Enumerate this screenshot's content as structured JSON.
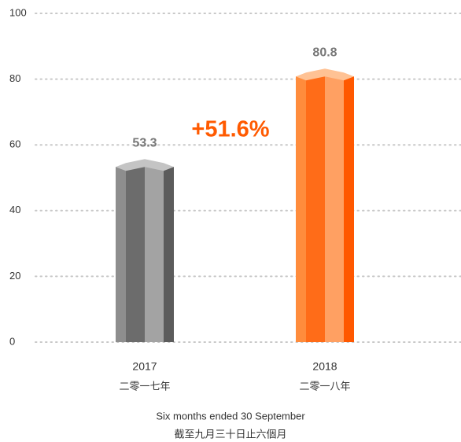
{
  "chart_data": {
    "type": "bar",
    "categories": [
      "2017",
      "2018"
    ],
    "category_subtitles": [
      "二零一七年",
      "二零一八年"
    ],
    "values": [
      53.3,
      80.8
    ],
    "colors": [
      "#8a8a8a",
      "#ff7a2a"
    ],
    "annotation": "+51.6%",
    "annotation_color": "#ff5a00",
    "x_label": "Six months ended 30 September",
    "x_label_subtitle": "截至九月三十日止六個月",
    "ylim": [
      0,
      100
    ],
    "yticks": [
      0,
      20,
      40,
      60,
      80,
      100
    ],
    "grid": true
  }
}
